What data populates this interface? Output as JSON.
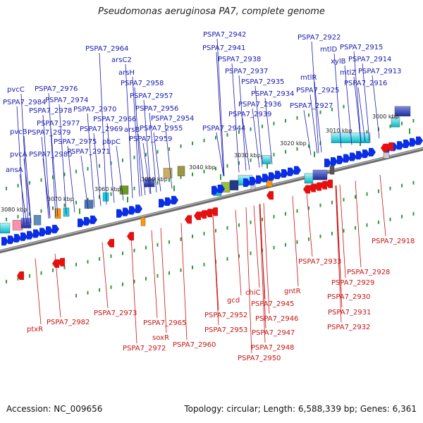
{
  "title": "Pseudomonas aeruginosa PA7, complete genome",
  "footer": {
    "accession": "Accession: NC_009656",
    "info": "Topology: circular; Length: 6,588,339 bp; Genes: 6,361"
  },
  "kbp_labels": [
    "3000 kbp",
    "3010 kbp",
    "3020 kbp",
    "3030 kbp",
    "3040 kbp",
    "3050 kbp",
    "3060 kbp",
    "3070 kbp",
    "3080 kbp"
  ],
  "top_labels": [
    "PSPA7_2942",
    "PSPA7_2941",
    "PSPA7_2938",
    "PSPA7_2937",
    "PSPA7_2935",
    "PSPA7_2934",
    "PSPA7_2936",
    "PSPA7_2939",
    "PSPA7_2944",
    "PSPA7_2922",
    "mtlD",
    "xylB",
    "mtlZ",
    "PSPA7_2915",
    "PSPA7_2914",
    "PSPA7_2913",
    "PSPA7_2916",
    "mtlR",
    "PSPA7_2925",
    "PSPA7_2927",
    "PSPA7_2964",
    "arsC2",
    "arsH",
    "PSPA7_2958",
    "PSPA7_2957",
    "PSPA7_2956",
    "PSPA7_2954",
    "PSPA7_2955",
    "PSPA7_2959",
    "PSPA7_2966",
    "arsB",
    "PSPA7_2969",
    "pbpC",
    "PSPA7_2970",
    "PSPA7_2976",
    "PSPA7_2974",
    "PSPA7_2978",
    "PSPA7_2977",
    "PSPA7_2975",
    "PSPA7_2971",
    "PSPA7_2979",
    "PSPA7_2980",
    "pvcC",
    "PSPA7_2984",
    "pvcB",
    "pvcA",
    "ansA"
  ],
  "bottom_labels": [
    "PSPA7_2918",
    "PSPA7_2933",
    "PSPA7_2928",
    "PSPA7_2929",
    "PSPA7_2930",
    "PSPA7_2931",
    "PSPA7_2932",
    "gntR",
    "chiC",
    "PSPA7_2945",
    "PSPA7_2946",
    "PSPA7_2947",
    "PSPA7_2948",
    "PSPA7_2950",
    "gcd",
    "PSPA7_2952",
    "PSPA7_2953",
    "PSPA7_2960",
    "PSPA7_2965",
    "soxR",
    "PSPA7_2973",
    "PSPA7_2972",
    "PSPA7_2982",
    "ptxR"
  ]
}
